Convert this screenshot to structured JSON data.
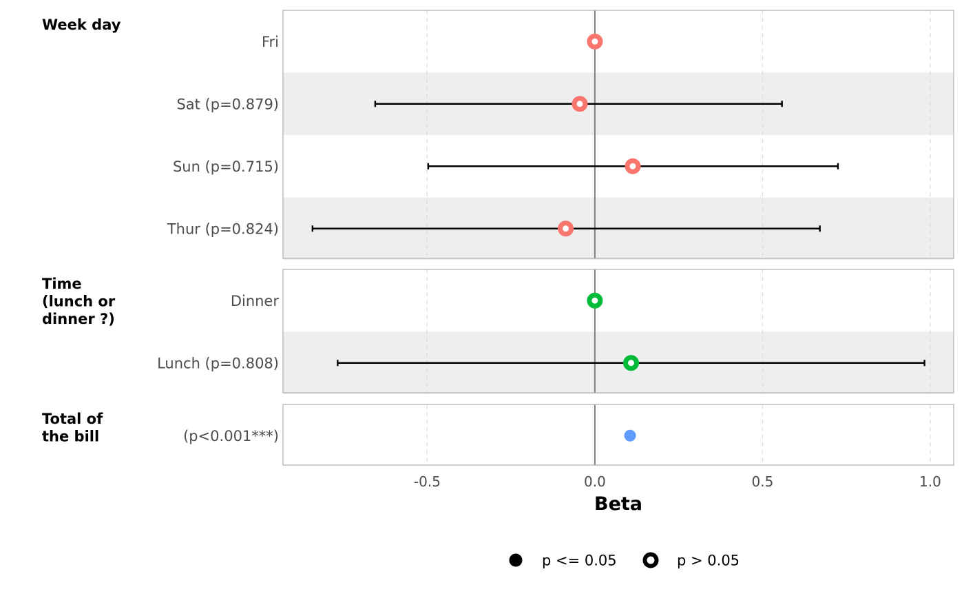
{
  "chart_data": {
    "type": "forest",
    "xlabel": "Beta",
    "xlim": [
      -0.93,
      1.07
    ],
    "x_ticks": [
      -0.5,
      0.0,
      0.5,
      1.0
    ],
    "x_tick_labels": [
      "-0.5",
      "0.0",
      "0.5",
      "1.0"
    ],
    "reference_line": 0.0,
    "grid": "vertical dashed",
    "groups": [
      {
        "title": "Week day",
        "color": "#f8766d",
        "rows": [
          {
            "label": "Fri",
            "estimate": 0.0,
            "ci": null,
            "significant": false
          },
          {
            "label": "Sat (p=0.879)",
            "estimate": -0.045,
            "ci": [
              -0.655,
              0.558
            ],
            "significant": false
          },
          {
            "label": "Sun (p=0.715)",
            "estimate": 0.113,
            "ci": [
              -0.497,
              0.725
            ],
            "significant": false
          },
          {
            "label": "Thur (p=0.824)",
            "estimate": -0.087,
            "ci": [
              -0.842,
              0.671
            ],
            "significant": false
          }
        ]
      },
      {
        "title": "Time\n(lunch or\ndinner ?)",
        "color": "#00ba38",
        "rows": [
          {
            "label": "Dinner",
            "estimate": 0.0,
            "ci": null,
            "significant": false
          },
          {
            "label": "Lunch (p=0.808)",
            "estimate": 0.108,
            "ci": [
              -0.767,
              0.983
            ],
            "significant": false
          }
        ]
      },
      {
        "title": "Total of\nthe bill",
        "color": "#619cff",
        "rows": [
          {
            "label": "(p<0.001***)",
            "estimate": 0.105,
            "ci": [
              0.099,
              0.111
            ],
            "significant": true
          }
        ]
      }
    ],
    "legend": {
      "placement": "bottom",
      "items": [
        {
          "label": "p <= 0.05",
          "marker": "filled"
        },
        {
          "label": "p > 0.05",
          "marker": "hollow"
        }
      ]
    }
  }
}
